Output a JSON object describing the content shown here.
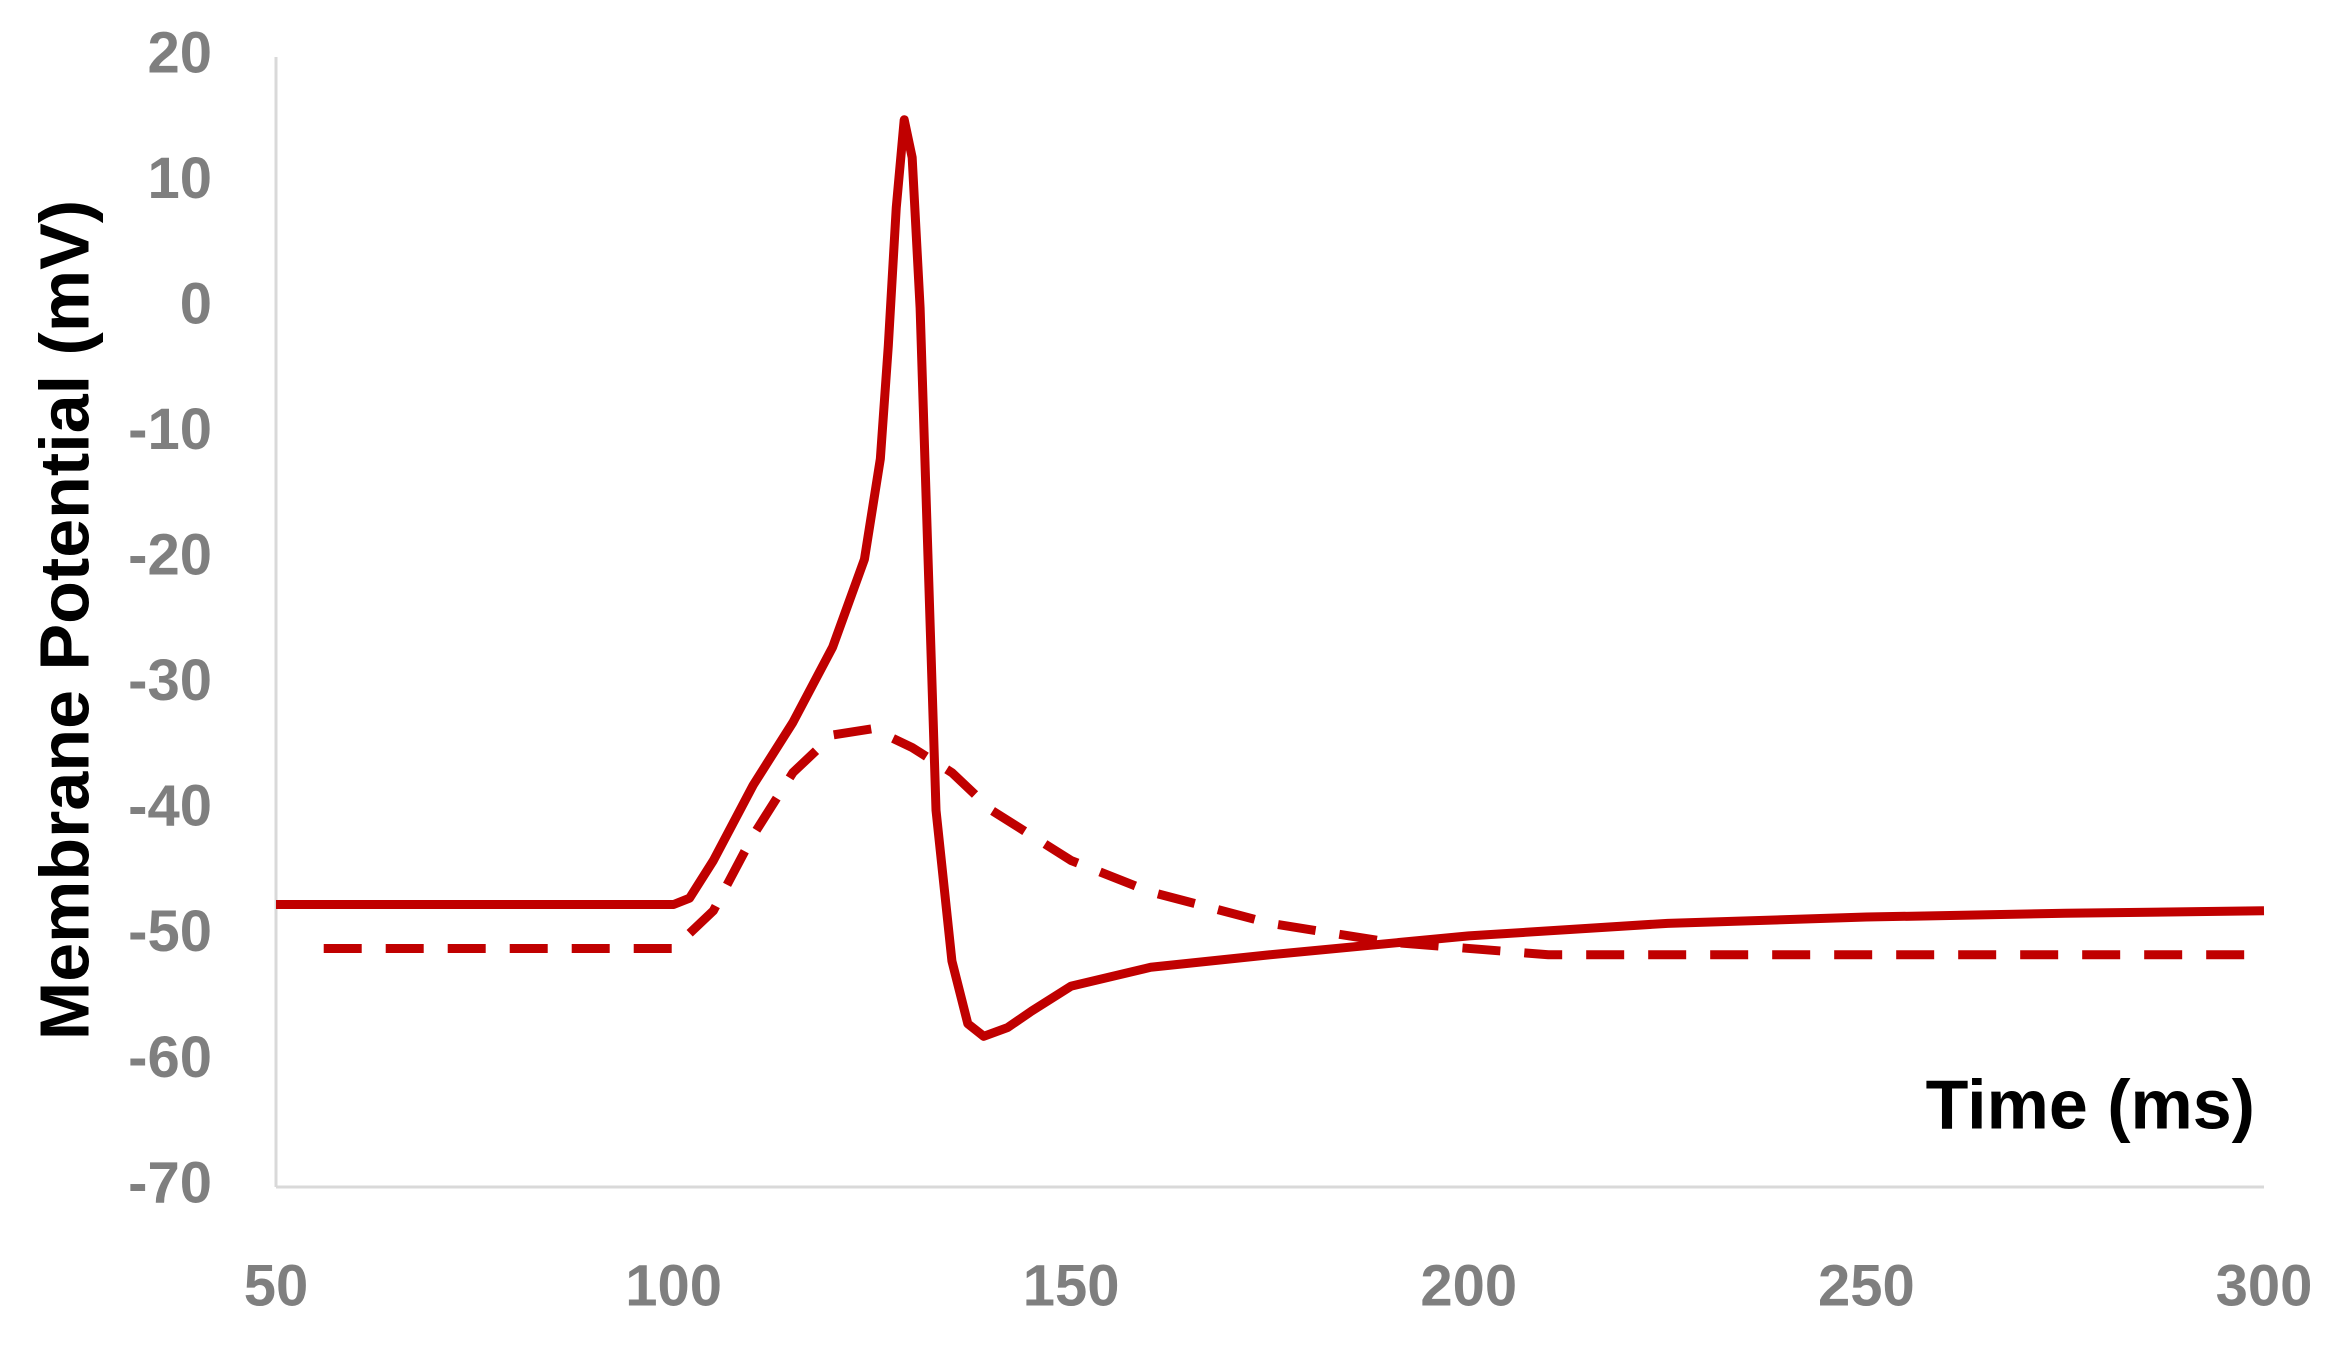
{
  "chart_data": {
    "type": "line",
    "x_label": "Time (ms)",
    "y_label": "Membrane Potential (mV)",
    "xlim": [
      50,
      300
    ],
    "xticks": [
      50,
      100,
      150,
      200,
      250,
      300
    ],
    "ylim": [
      -70,
      20
    ],
    "yticks": [
      -70,
      -60,
      -50,
      -40,
      -30,
      -20,
      -10,
      0,
      10,
      20
    ],
    "grid": false,
    "series": [
      {
        "color": "#c00000",
        "line_style": "solid",
        "x": [
          50,
          100,
          102,
          105,
          110,
          115,
          120,
          124,
          126,
          127,
          128,
          129,
          130,
          131,
          132,
          133,
          135,
          137,
          139,
          142,
          145,
          150,
          160,
          175,
          200,
          225,
          250,
          275,
          300
        ],
        "values": [
          -47.5,
          -47.5,
          -47,
          -44,
          -38,
          -33,
          -27,
          -20,
          -12,
          -3,
          8,
          15,
          12,
          0,
          -20,
          -40,
          -52,
          -57,
          -58,
          -57.3,
          -56,
          -54,
          -52.5,
          -51.5,
          -50,
          -49,
          -48.5,
          -48.2,
          -48
        ]
      },
      {
        "color": "#c00000",
        "line_style": "dashed",
        "x": [
          56,
          100,
          105,
          110,
          115,
          120,
          125,
          130,
          135,
          140,
          150,
          160,
          175,
          190,
          200,
          210,
          225,
          250,
          300
        ],
        "values": [
          -51,
          -51,
          -48,
          -42,
          -37,
          -34,
          -33.5,
          -35,
          -37,
          -40,
          -44,
          -46.5,
          -49,
          -50.5,
          -51,
          -51.5,
          -51.5,
          -51.5,
          -51.5
        ]
      }
    ]
  }
}
